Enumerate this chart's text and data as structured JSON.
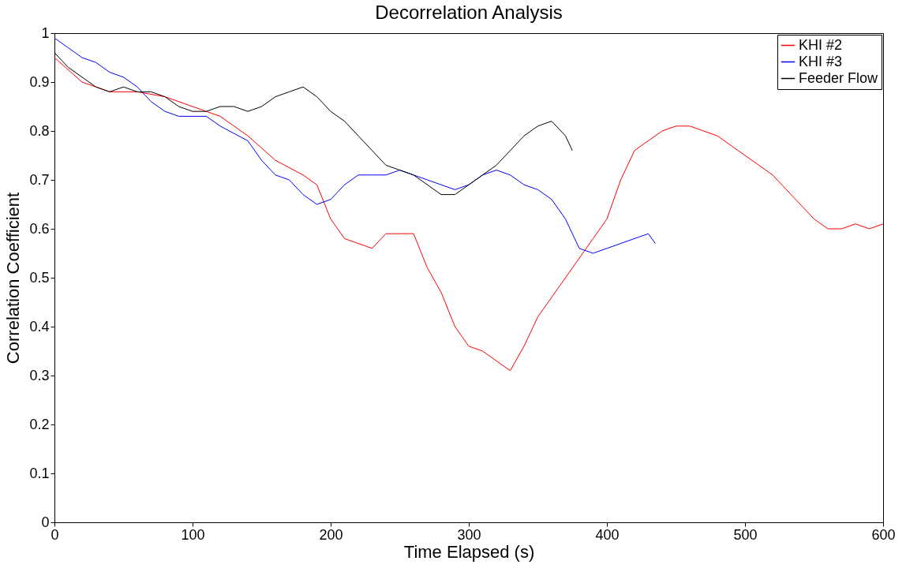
{
  "chart_data": {
    "type": "line",
    "title": "Decorrelation Analysis",
    "xlabel": "Time Elapsed (s)",
    "ylabel": "Correlation Coefficient",
    "xlim": [
      0,
      600
    ],
    "xticks": [
      0,
      100,
      200,
      300,
      400,
      500,
      600
    ],
    "ylim": [
      0,
      1
    ],
    "yticks": [
      0,
      0.1,
      0.2,
      0.3,
      0.4,
      0.5,
      0.6,
      0.7,
      0.8,
      0.9,
      1
    ],
    "grid": false,
    "legend": "top right",
    "line_style": "solid",
    "marker": "none",
    "series": [
      {
        "name": "KHI #2",
        "color": "#ff0000",
        "x": [
          0,
          20,
          40,
          60,
          80,
          100,
          120,
          140,
          160,
          180,
          190,
          200,
          210,
          220,
          230,
          240,
          260,
          270,
          280,
          290,
          300,
          310,
          320,
          330,
          340,
          350,
          360,
          370,
          380,
          390,
          400,
          410,
          420,
          430,
          440,
          450,
          460,
          470,
          480,
          490,
          500,
          510,
          520,
          530,
          540,
          550,
          560,
          570,
          580,
          590,
          600
        ],
        "values": [
          0.95,
          0.9,
          0.88,
          0.88,
          0.87,
          0.85,
          0.83,
          0.79,
          0.74,
          0.71,
          0.69,
          0.62,
          0.58,
          0.57,
          0.56,
          0.59,
          0.59,
          0.52,
          0.47,
          0.4,
          0.36,
          0.35,
          0.33,
          0.31,
          0.36,
          0.42,
          0.46,
          0.5,
          0.54,
          0.58,
          0.62,
          0.7,
          0.76,
          0.78,
          0.8,
          0.81,
          0.81,
          0.8,
          0.79,
          0.77,
          0.75,
          0.73,
          0.71,
          0.68,
          0.65,
          0.62,
          0.6,
          0.6,
          0.61,
          0.6,
          0.61
        ]
      },
      {
        "name": "KHI #3",
        "color": "#0000ff",
        "x": [
          0,
          10,
          20,
          30,
          40,
          50,
          60,
          70,
          80,
          90,
          100,
          110,
          120,
          140,
          150,
          160,
          170,
          180,
          190,
          200,
          210,
          220,
          230,
          240,
          250,
          260,
          270,
          280,
          290,
          300,
          310,
          320,
          330,
          340,
          350,
          360,
          370,
          380,
          390,
          400,
          410,
          420,
          430,
          435
        ],
        "values": [
          0.99,
          0.97,
          0.95,
          0.94,
          0.92,
          0.91,
          0.89,
          0.86,
          0.84,
          0.83,
          0.83,
          0.83,
          0.81,
          0.78,
          0.74,
          0.71,
          0.7,
          0.67,
          0.65,
          0.66,
          0.69,
          0.71,
          0.71,
          0.71,
          0.72,
          0.71,
          0.7,
          0.69,
          0.68,
          0.69,
          0.71,
          0.72,
          0.71,
          0.69,
          0.68,
          0.66,
          0.62,
          0.56,
          0.55,
          0.56,
          0.57,
          0.58,
          0.59,
          0.57
        ]
      },
      {
        "name": "Feeder Flow",
        "color": "#000000",
        "x": [
          0,
          10,
          20,
          30,
          40,
          50,
          60,
          70,
          80,
          90,
          100,
          110,
          120,
          130,
          140,
          150,
          160,
          170,
          180,
          190,
          200,
          210,
          220,
          230,
          240,
          250,
          260,
          270,
          280,
          290,
          300,
          310,
          320,
          330,
          340,
          350,
          360,
          370,
          375
        ],
        "values": [
          0.96,
          0.93,
          0.91,
          0.89,
          0.88,
          0.89,
          0.88,
          0.88,
          0.87,
          0.85,
          0.84,
          0.84,
          0.85,
          0.85,
          0.84,
          0.85,
          0.87,
          0.88,
          0.89,
          0.87,
          0.84,
          0.82,
          0.79,
          0.76,
          0.73,
          0.72,
          0.71,
          0.69,
          0.67,
          0.67,
          0.69,
          0.71,
          0.73,
          0.76,
          0.79,
          0.81,
          0.82,
          0.79,
          0.76
        ]
      }
    ]
  }
}
